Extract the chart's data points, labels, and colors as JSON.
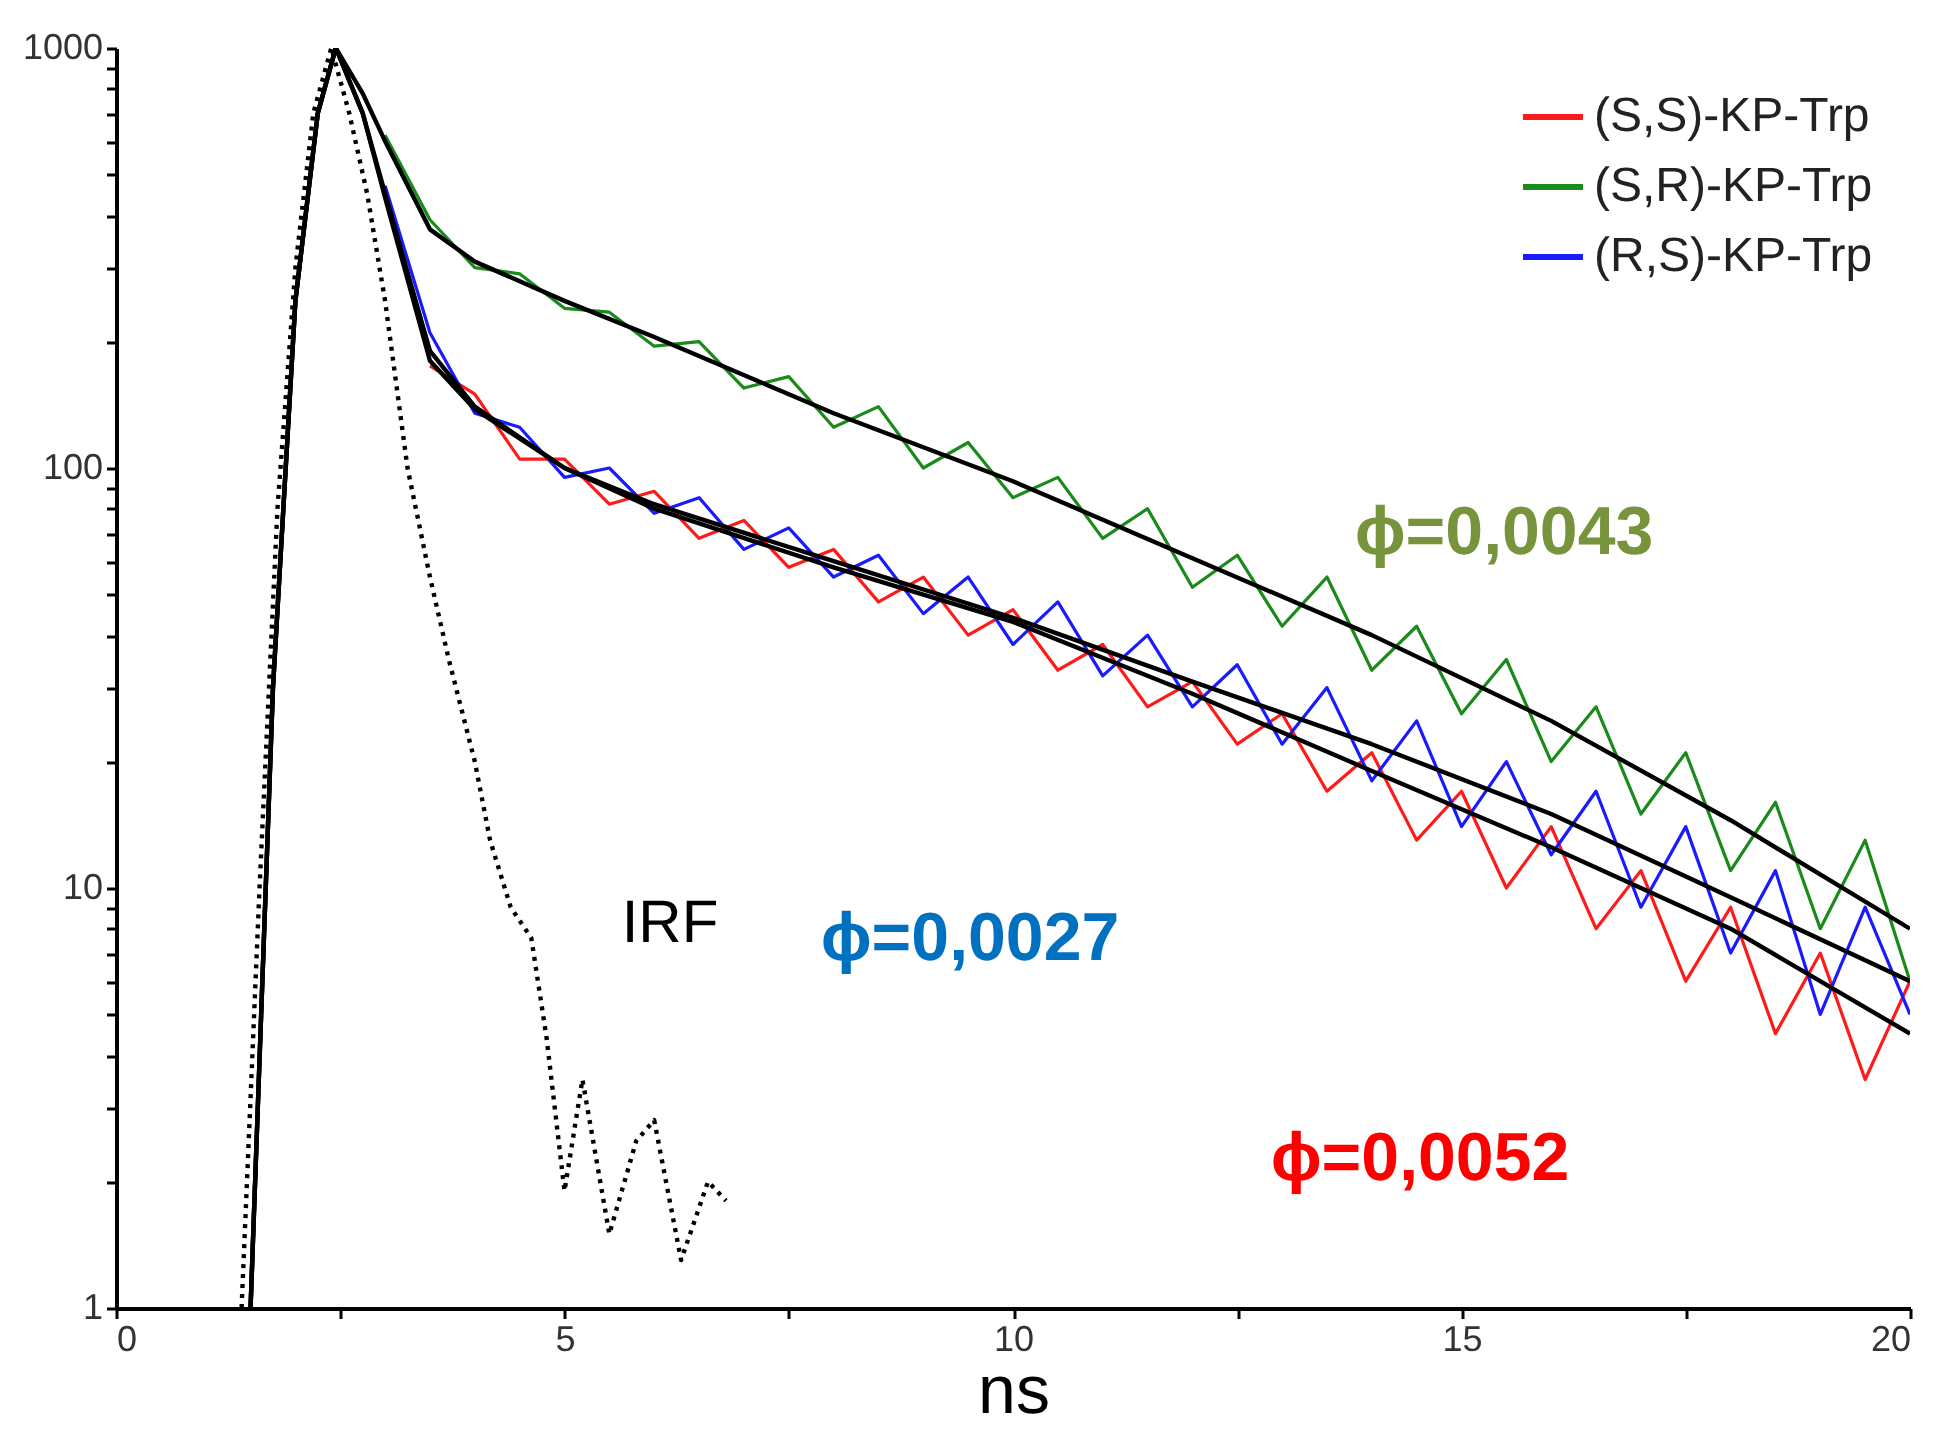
{
  "chart_data": {
    "type": "line",
    "xlabel": "ns",
    "log": "y",
    "grid": false,
    "legend": "top right",
    "marker": "none",
    "xlim": [
      0,
      20
    ],
    "ylim": [
      1,
      1000
    ],
    "xticks": [
      0,
      {
        "value": 2.5,
        "label": null
      },
      5,
      {
        "value": 7.5,
        "label": null
      },
      10,
      {
        "value": 12.5,
        "label": null
      },
      15,
      {
        "value": 17.5,
        "label": null
      },
      20
    ],
    "yticks": [
      1,
      {
        "value": 2,
        "label": null
      },
      {
        "value": 3,
        "label": null
      },
      {
        "value": 4,
        "label": null
      },
      {
        "value": 5,
        "label": null
      },
      {
        "value": 6,
        "label": null
      },
      {
        "value": 7,
        "label": null
      },
      {
        "value": 8,
        "label": null
      },
      {
        "value": 9,
        "label": null
      },
      10,
      {
        "value": 20,
        "label": null
      },
      {
        "value": 30,
        "label": null
      },
      {
        "value": 40,
        "label": null
      },
      {
        "value": 50,
        "label": null
      },
      {
        "value": 60,
        "label": null
      },
      {
        "value": 70,
        "label": null
      },
      {
        "value": 80,
        "label": null
      },
      {
        "value": 90,
        "label": null
      },
      100,
      {
        "value": 200,
        "label": null
      },
      {
        "value": 300,
        "label": null
      },
      {
        "value": 400,
        "label": null
      },
      {
        "value": 500,
        "label": null
      },
      {
        "value": 600,
        "label": null
      },
      {
        "value": 700,
        "label": null
      },
      {
        "value": 800,
        "label": null
      },
      {
        "value": 900,
        "label": null
      },
      1000
    ],
    "series": [
      {
        "name": "(S,S)-KP-Trp",
        "color": "#ff1a1a",
        "x": [
          3.5,
          4,
          4.5,
          5,
          5.5,
          6,
          6.5,
          7,
          7.5,
          8,
          8.5,
          9,
          9.5,
          10,
          10.5,
          11,
          11.5,
          12,
          12.5,
          13,
          13.5,
          14,
          14.5,
          15,
          15.5,
          16,
          16.5,
          17,
          17.5,
          18,
          18.5,
          19,
          19.5,
          20
        ],
        "values": [
          175,
          150,
          105,
          105,
          82,
          88,
          68,
          75,
          58,
          64,
          48,
          55,
          40,
          46,
          33,
          38,
          27,
          31,
          22,
          26,
          17,
          21,
          13,
          17,
          10,
          14,
          8,
          11,
          6,
          9,
          4.5,
          7,
          3.5,
          6
        ]
      },
      {
        "name": "(S,R)-KP-Trp",
        "color": "#1a8a1a",
        "x": [
          3,
          3.5,
          4,
          4.5,
          5,
          5.5,
          6,
          6.5,
          7,
          7.5,
          8,
          8.5,
          9,
          9.5,
          10,
          10.5,
          11,
          11.5,
          12,
          12.5,
          13,
          13.5,
          14,
          14.5,
          15,
          15.5,
          16,
          16.5,
          17,
          17.5,
          18,
          18.5,
          19,
          19.5,
          20
        ],
        "values": [
          620,
          390,
          300,
          290,
          240,
          235,
          195,
          200,
          155,
          165,
          125,
          140,
          100,
          115,
          85,
          95,
          68,
          80,
          52,
          62,
          42,
          55,
          33,
          42,
          26,
          35,
          20,
          27,
          15,
          21,
          11,
          16,
          8,
          13,
          6
        ]
      },
      {
        "name": "(R,S)-KP-Trp",
        "color": "#1a1aff",
        "x": [
          3,
          3.5,
          4,
          4.5,
          5,
          5.5,
          6,
          6.5,
          7,
          7.5,
          8,
          8.5,
          9,
          9.5,
          10,
          10.5,
          11,
          11.5,
          12,
          12.5,
          13,
          13.5,
          14,
          14.5,
          15,
          15.5,
          16,
          16.5,
          17,
          17.5,
          18,
          18.5,
          19,
          19.5,
          20
        ],
        "values": [
          470,
          210,
          135,
          125,
          95,
          100,
          78,
          85,
          64,
          72,
          55,
          62,
          45,
          55,
          38,
          48,
          32,
          40,
          27,
          34,
          22,
          30,
          18,
          25,
          14,
          20,
          12,
          17,
          9,
          14,
          7,
          11,
          5,
          9,
          5
        ]
      },
      {
        "color": "#000000",
        "x": [
          1.5,
          1.75,
          2,
          2.25,
          2.45,
          2.75,
          3,
          3.5,
          4,
          5,
          6,
          8,
          10,
          12,
          14,
          16,
          18,
          20
        ],
        "values": [
          1,
          30,
          250,
          700,
          1000,
          780,
          600,
          370,
          310,
          250,
          205,
          135,
          93,
          61,
          40,
          25,
          14.5,
          8
        ]
      },
      {
        "color": "#000000",
        "x": [
          1.5,
          1.75,
          2,
          2.25,
          2.45,
          2.75,
          3,
          3.5,
          4,
          5,
          6,
          8,
          10,
          12,
          14,
          16,
          18,
          20
        ],
        "values": [
          1,
          30,
          250,
          700,
          1000,
          700,
          450,
          190,
          140,
          100,
          82,
          60,
          44,
          31,
          22,
          15,
          9.5,
          6
        ]
      },
      {
        "color": "#000000",
        "x": [
          1.5,
          1.75,
          2,
          2.25,
          2.45,
          2.75,
          3,
          3.5,
          4,
          5,
          6,
          8,
          10,
          12,
          14,
          16,
          18,
          20
        ],
        "values": [
          1,
          30,
          250,
          700,
          1000,
          700,
          440,
          180,
          138,
          100,
          80,
          58,
          43,
          29,
          19,
          12.5,
          8,
          4.5
        ]
      },
      {
        "color": "#000000",
        "line_style": "dotted",
        "x": [
          1.4,
          1.6,
          1.8,
          2,
          2.2,
          2.4,
          2.6,
          2.8,
          3,
          3.25,
          3.5,
          3.71,
          4,
          4.17,
          4.4,
          4.63,
          4.8,
          5,
          5.2,
          5.5,
          5.8,
          6,
          6.3,
          6.6,
          6.8
        ],
        "values": [
          1,
          10,
          80,
          300,
          700,
          1000,
          700,
          450,
          250,
          100,
          55,
          35,
          20,
          13,
          9,
          7.6,
          4.4,
          1.9,
          3.5,
          1.5,
          2.5,
          2.8,
          1.3,
          2,
          1.8
        ]
      }
    ],
    "annotations": [
      "IRF",
      "ϕ=0,0043",
      "ϕ=0,0027",
      "ϕ=0,0052"
    ]
  }
}
